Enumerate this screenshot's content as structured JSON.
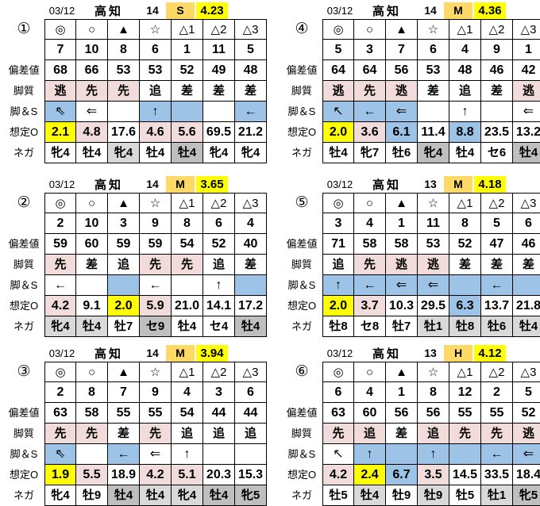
{
  "colors": {
    "pink": "#f2dcdb",
    "blue": "#9dc3e6",
    "yellow": "#ffff00",
    "orange": "#ffd966",
    "lightgray": "#d9d9d9",
    "darkgray": "#bfbfbf"
  },
  "symbols": [
    "◎",
    "○",
    "▲",
    "☆",
    "△1",
    "△2",
    "△3"
  ],
  "row_headers": [
    "偏差値",
    "脚質",
    "脚＆S",
    "想定O",
    "ネガ"
  ],
  "tables": [
    {
      "num": "①",
      "date": "03/12",
      "venue": "高知",
      "race": "14",
      "class": "S",
      "value": "4.23",
      "horses": [
        "7",
        "10",
        "8",
        "6",
        "1",
        "11",
        "5"
      ],
      "dev": [
        "68",
        "66",
        "53",
        "53",
        "52",
        "49",
        "48"
      ],
      "style": {
        "text": [
          "逃",
          "先",
          "先",
          "追",
          "差",
          "差",
          "差"
        ],
        "bg": [
          "pink",
          "pink",
          "pink",
          "",
          "",
          "",
          ""
        ]
      },
      "arrows": {
        "text": [
          "⇖",
          "⇐",
          "",
          "↑",
          "",
          "",
          "←"
        ],
        "bg": [
          "blue",
          "",
          "",
          "blue",
          "blue",
          "",
          "blue"
        ]
      },
      "odds": {
        "text": [
          "2.1",
          "4.8",
          "17.6",
          "4.6",
          "5.6",
          "69.5",
          "21.2"
        ],
        "bg": [
          "yellow",
          "pink",
          "",
          "pink",
          "pink",
          "",
          ""
        ]
      },
      "nega": {
        "text": [
          "牝4",
          "牡4",
          "牝4",
          "牡4",
          "牡4",
          "牝4",
          "牝4"
        ],
        "bg": [
          "",
          "",
          "lightgray",
          "",
          "darkgray",
          "",
          ""
        ]
      }
    },
    {
      "num": "②",
      "date": "03/12",
      "venue": "高知",
      "race": "14",
      "class": "M",
      "value": "3.65",
      "horses": [
        "2",
        "10",
        "3",
        "9",
        "8",
        "6",
        "4"
      ],
      "dev": [
        "59",
        "60",
        "59",
        "59",
        "54",
        "52",
        "40"
      ],
      "style": {
        "text": [
          "先",
          "差",
          "追",
          "先",
          "先",
          "追",
          "差"
        ],
        "bg": [
          "pink",
          "",
          "",
          "pink",
          "pink",
          "",
          ""
        ]
      },
      "arrows": {
        "text": [
          "←",
          "",
          "",
          "←",
          "",
          "↑",
          ""
        ],
        "bg": [
          "",
          "",
          "blue",
          "",
          "",
          "",
          "blue"
        ]
      },
      "odds": {
        "text": [
          "4.2",
          "9.1",
          "2.0",
          "5.9",
          "21.0",
          "14.1",
          "17.2"
        ],
        "bg": [
          "pink",
          "",
          "yellow",
          "pink",
          "",
          "",
          ""
        ]
      },
      "nega": {
        "text": [
          "牝4",
          "牡4",
          "牡7",
          "セ9",
          "牡4",
          "セ4",
          "牡4"
        ],
        "bg": [
          "lightgray",
          "lightgray",
          "",
          "darkgray",
          "",
          "",
          "darkgray"
        ]
      }
    },
    {
      "num": "③",
      "date": "03/12",
      "venue": "高知",
      "race": "14",
      "class": "M",
      "value": "3.94",
      "horses": [
        "2",
        "8",
        "7",
        "9",
        "4",
        "3",
        "6"
      ],
      "dev": [
        "63",
        "58",
        "55",
        "55",
        "54",
        "44",
        "44"
      ],
      "style": {
        "text": [
          "先",
          "先",
          "差",
          "先",
          "追",
          "追",
          "追"
        ],
        "bg": [
          "pink",
          "pink",
          "",
          "pink",
          "",
          "",
          ""
        ]
      },
      "arrows": {
        "text": [
          "⇖",
          "",
          "←",
          "⇐",
          "↑",
          "",
          ""
        ],
        "bg": [
          "blue",
          "",
          "blue",
          "",
          "",
          "",
          ""
        ]
      },
      "odds": {
        "text": [
          "1.9",
          "5.5",
          "18.9",
          "4.2",
          "5.1",
          "20.3",
          "15.3"
        ],
        "bg": [
          "yellow",
          "pink",
          "",
          "pink",
          "pink",
          "",
          ""
        ]
      },
      "nega": {
        "text": [
          "牝4",
          "牡9",
          "牡4",
          "牡4",
          "牝4",
          "牡4",
          "牝5"
        ],
        "bg": [
          "",
          "",
          "darkgray",
          "lightgray",
          "lightgray",
          "darkgray",
          "darkgray"
        ]
      }
    },
    {
      "num": "④",
      "date": "03/12",
      "venue": "高知",
      "race": "14",
      "class": "M",
      "value": "4.36",
      "horses": [
        "5",
        "3",
        "7",
        "6",
        "4",
        "9",
        "1"
      ],
      "dev": [
        "64",
        "64",
        "56",
        "53",
        "48",
        "46",
        "42"
      ],
      "style": {
        "text": [
          "逃",
          "先",
          "逃",
          "差",
          "追",
          "差",
          "逃"
        ],
        "bg": [
          "pink",
          "pink",
          "pink",
          "",
          "",
          "",
          "pink"
        ]
      },
      "arrows": {
        "text": [
          "↖",
          "←",
          "⇐",
          "",
          "↑",
          "",
          "⇐"
        ],
        "bg": [
          "blue",
          "blue",
          "blue",
          "",
          "",
          "",
          ""
        ]
      },
      "odds": {
        "text": [
          "2.0",
          "3.6",
          "6.1",
          "11.4",
          "8.8",
          "23.5",
          "13.2"
        ],
        "bg": [
          "yellow",
          "pink",
          "blue",
          "",
          "blue",
          "",
          ""
        ]
      },
      "nega": {
        "text": [
          "牡4",
          "牝7",
          "牡6",
          "牝4",
          "牡4",
          "セ6",
          "牡4"
        ],
        "bg": [
          "",
          "",
          "",
          "darkgray",
          "",
          "",
          "darkgray"
        ]
      }
    },
    {
      "num": "⑤",
      "date": "03/12",
      "venue": "高知",
      "race": "13",
      "class": "M",
      "value": "4.18",
      "horses": [
        "3",
        "4",
        "1",
        "11",
        "8",
        "5",
        "6"
      ],
      "dev": [
        "71",
        "58",
        "58",
        "53",
        "52",
        "47",
        "46"
      ],
      "style": {
        "text": [
          "追",
          "先",
          "逃",
          "逃",
          "差",
          "差",
          "差"
        ],
        "bg": [
          "",
          "pink",
          "pink",
          "pink",
          "",
          "",
          ""
        ]
      },
      "arrows": {
        "text": [
          "↑",
          "←",
          "⇐",
          "⇐",
          "",
          "←",
          ""
        ],
        "bg": [
          "blue",
          "blue",
          "blue",
          "blue",
          "blue",
          "blue",
          "blue"
        ]
      },
      "odds": {
        "text": [
          "2.0",
          "3.7",
          "10.3",
          "29.5",
          "6.3",
          "13.7",
          "21.8"
        ],
        "bg": [
          "yellow",
          "pink",
          "",
          "",
          "blue",
          "",
          ""
        ]
      },
      "nega": {
        "text": [
          "牡8",
          "セ8",
          "牡7",
          "牡1",
          "牡8",
          "牡6",
          "牡4"
        ],
        "bg": [
          "",
          "",
          "",
          "lightgray",
          "lightgray",
          "lightgray",
          "lightgray"
        ]
      }
    },
    {
      "num": "⑥",
      "date": "03/12",
      "venue": "高知",
      "race": "13",
      "class": "H",
      "value": "4.12",
      "horses": [
        "6",
        "4",
        "1",
        "8",
        "12",
        "2",
        "5"
      ],
      "dev": [
        "63",
        "60",
        "56",
        "56",
        "55",
        "55",
        "52"
      ],
      "style": {
        "text": [
          "先",
          "追",
          "差",
          "追",
          "先",
          "先",
          "逃"
        ],
        "bg": [
          "pink",
          "pink",
          "",
          "pink",
          "pink",
          "pink",
          "pink"
        ]
      },
      "arrows": {
        "text": [
          "↖",
          "↑",
          "",
          "↑",
          "",
          "←",
          "⇐"
        ],
        "bg": [
          "",
          "blue",
          "blue",
          "blue",
          "blue",
          "blue",
          "blue"
        ]
      },
      "odds": {
        "text": [
          "4.2",
          "2.4",
          "6.7",
          "3.5",
          "14.5",
          "33.5",
          "18.4"
        ],
        "bg": [
          "pink",
          "yellow",
          "blue",
          "pink",
          "",
          "",
          ""
        ]
      },
      "nega": {
        "text": [
          "牡5",
          "牡4",
          "牡9",
          "牡9",
          "牡5",
          "牡1",
          "牝5"
        ],
        "bg": [
          "",
          "lightgray",
          "",
          "lightgray",
          "",
          "lightgray",
          "darkgray"
        ]
      }
    }
  ]
}
